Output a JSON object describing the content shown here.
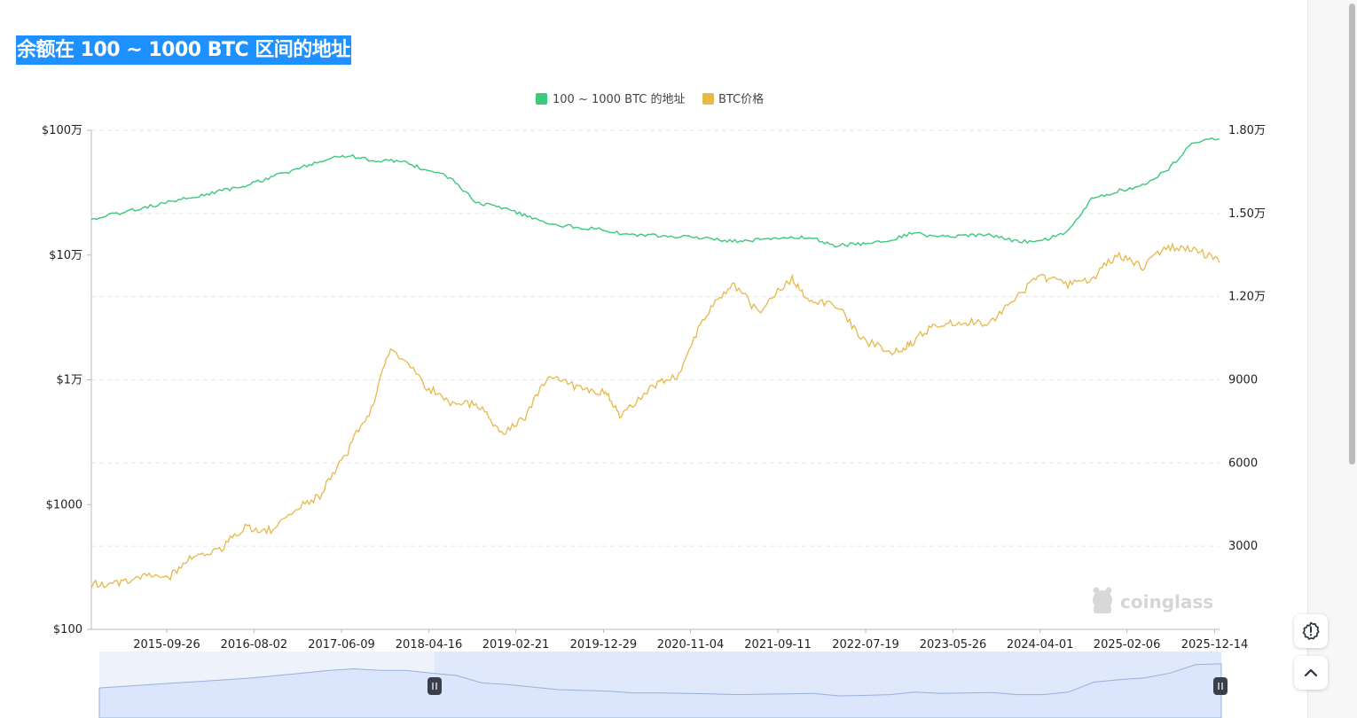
{
  "title": "余额在 100 ~ 1000 BTC 区间的地址",
  "watermark": "coinglass",
  "colors": {
    "title_bg": "#1e90ff",
    "addresses": "#3cc97c",
    "price": "#e5b94a",
    "navigator_fill": "#dbe5fb",
    "navigator_line": "#9ab0da"
  },
  "icons": {
    "theme": "gear-alert-icon",
    "scroll_top": "chevron-up-icon"
  },
  "chart_data": {
    "type": "line",
    "x_ticks": [
      "2015-09-26",
      "2016-08-02",
      "2017-06-09",
      "2018-04-16",
      "2019-02-21",
      "2019-12-29",
      "2020-11-04",
      "2021-09-11",
      "2022-07-19",
      "2023-05-26",
      "2024-04-01",
      "2025-02-06",
      "2025-12-14"
    ],
    "x_range": [
      "2015-01",
      "2026-01"
    ],
    "y_left": {
      "scale": "log",
      "ticks": [
        "$100万",
        "$10万",
        "$1万",
        "$1000",
        "$100"
      ],
      "range": [
        100,
        1000000
      ]
    },
    "y_right": {
      "scale": "linear",
      "ticks": [
        "1.80万",
        "1.50万",
        "1.20万",
        "9000",
        "6000",
        "3000"
      ],
      "range": [
        0,
        18000
      ]
    },
    "legend_position": "top-center",
    "grid": true,
    "series": [
      {
        "name": "100 ~ 1000 BTC 的地址",
        "axis": "right",
        "points": [
          [
            "2015-01",
            14800
          ],
          [
            "2015-04",
            15000
          ],
          [
            "2015-07",
            15200
          ],
          [
            "2015-10",
            15400
          ],
          [
            "2016-01",
            15600
          ],
          [
            "2016-04",
            15800
          ],
          [
            "2016-07",
            16000
          ],
          [
            "2016-10",
            16300
          ],
          [
            "2017-01",
            16600
          ],
          [
            "2017-04",
            16900
          ],
          [
            "2017-07",
            17100
          ],
          [
            "2017-10",
            16900
          ],
          [
            "2018-01",
            16900
          ],
          [
            "2018-04",
            16600
          ],
          [
            "2018-07",
            16300
          ],
          [
            "2018-10",
            15400
          ],
          [
            "2019-01",
            15200
          ],
          [
            "2019-04",
            14900
          ],
          [
            "2019-07",
            14600
          ],
          [
            "2019-10",
            14500
          ],
          [
            "2020-01",
            14400
          ],
          [
            "2020-04",
            14200
          ],
          [
            "2020-07",
            14200
          ],
          [
            "2020-10",
            14150
          ],
          [
            "2021-01",
            14100
          ],
          [
            "2021-04",
            14000
          ],
          [
            "2021-07",
            14050
          ],
          [
            "2021-10",
            14100
          ],
          [
            "2022-01",
            14150
          ],
          [
            "2022-04",
            13850
          ],
          [
            "2022-07",
            13900
          ],
          [
            "2022-10",
            14000
          ],
          [
            "2023-01",
            14300
          ],
          [
            "2023-04",
            14150
          ],
          [
            "2023-07",
            14200
          ],
          [
            "2023-10",
            14250
          ],
          [
            "2024-01",
            14000
          ],
          [
            "2024-04",
            14000
          ],
          [
            "2024-07",
            14300
          ],
          [
            "2024-10",
            15500
          ],
          [
            "2025-01",
            15800
          ],
          [
            "2025-04",
            16000
          ],
          [
            "2025-07",
            16600
          ],
          [
            "2025-10",
            17600
          ],
          [
            "2026-01",
            17700
          ]
        ]
      },
      {
        "name": "BTC价格",
        "axis": "left",
        "points": [
          [
            "2015-01",
            230
          ],
          [
            "2015-04",
            235
          ],
          [
            "2015-07",
            270
          ],
          [
            "2015-10",
            250
          ],
          [
            "2016-01",
            400
          ],
          [
            "2016-04",
            430
          ],
          [
            "2016-07",
            650
          ],
          [
            "2016-10",
            620
          ],
          [
            "2017-01",
            950
          ],
          [
            "2017-04",
            1200
          ],
          [
            "2017-07",
            2600
          ],
          [
            "2017-10",
            6000
          ],
          [
            "2017-12",
            17500
          ],
          [
            "2018-04",
            8900
          ],
          [
            "2018-07",
            6600
          ],
          [
            "2018-10",
            6400
          ],
          [
            "2019-01",
            3600
          ],
          [
            "2019-04",
            5200
          ],
          [
            "2019-07",
            11000
          ],
          [
            "2019-10",
            8500
          ],
          [
            "2020-01",
            8000
          ],
          [
            "2020-03",
            5000
          ],
          [
            "2020-07",
            9200
          ],
          [
            "2020-10",
            11000
          ],
          [
            "2021-01",
            32000
          ],
          [
            "2021-04",
            58000
          ],
          [
            "2021-07",
            34000
          ],
          [
            "2021-11",
            64000
          ],
          [
            "2022-01",
            43000
          ],
          [
            "2022-04",
            40000
          ],
          [
            "2022-07",
            21000
          ],
          [
            "2022-11",
            16500
          ],
          [
            "2023-01",
            20000
          ],
          [
            "2023-04",
            28000
          ],
          [
            "2023-07",
            29500
          ],
          [
            "2023-10",
            28000
          ],
          [
            "2024-01",
            42000
          ],
          [
            "2024-04",
            68000
          ],
          [
            "2024-07",
            58000
          ],
          [
            "2024-10",
            62000
          ],
          [
            "2025-01",
            100000
          ],
          [
            "2025-04",
            80000
          ],
          [
            "2025-07",
            117000
          ],
          [
            "2025-10",
            112000
          ],
          [
            "2026-01",
            87000
          ]
        ]
      }
    ]
  }
}
